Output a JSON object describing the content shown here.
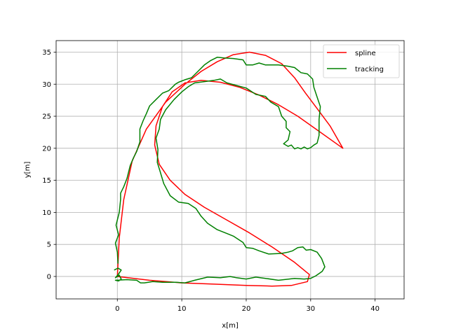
{
  "chart_data": {
    "type": "line",
    "xlabel": "x[m]",
    "ylabel": "y[m]",
    "xlim": [
      -9.5,
      44.5
    ],
    "ylim": [
      -3.5,
      36.8
    ],
    "xticks": [
      0,
      10,
      20,
      30,
      40
    ],
    "yticks": [
      0,
      5,
      10,
      15,
      20,
      25,
      30,
      35
    ],
    "grid": true,
    "legend_position": "top-right",
    "series": [
      {
        "name": "spline",
        "color": "#ff0000",
        "points": [
          [
            0,
            0
          ],
          [
            0.3,
            6
          ],
          [
            1.0,
            12
          ],
          [
            2.3,
            18
          ],
          [
            4.5,
            23
          ],
          [
            7.5,
            27.2
          ],
          [
            10.5,
            30
          ],
          [
            13,
            32
          ],
          [
            15.5,
            33.5
          ],
          [
            18,
            34.6
          ],
          [
            20.5,
            35
          ],
          [
            23,
            34.5
          ],
          [
            25.5,
            33.2
          ],
          [
            27.5,
            31
          ],
          [
            29.2,
            28.6
          ],
          [
            31,
            26.2
          ],
          [
            33,
            23.5
          ],
          [
            35,
            20
          ],
          [
            31.5,
            22.5
          ],
          [
            28,
            25
          ],
          [
            25,
            26.8
          ],
          [
            22,
            28.3
          ],
          [
            19,
            29.5
          ],
          [
            16,
            30.3
          ],
          [
            13,
            30.6
          ],
          [
            10.5,
            30.2
          ],
          [
            8.5,
            28.8
          ],
          [
            7,
            26.5
          ],
          [
            6,
            23.5
          ],
          [
            5.8,
            20.5
          ],
          [
            6.5,
            17.5
          ],
          [
            8.2,
            15
          ],
          [
            10.5,
            12.8
          ],
          [
            13.5,
            10.8
          ],
          [
            17,
            8.8
          ],
          [
            20.5,
            6.8
          ],
          [
            24,
            4.6
          ],
          [
            27.5,
            2.2
          ],
          [
            29.8,
            0.3
          ],
          [
            29.5,
            -0.8
          ],
          [
            27,
            -1.4
          ],
          [
            24,
            -1.5
          ],
          [
            20,
            -1.4
          ],
          [
            15,
            -1.2
          ],
          [
            10,
            -1
          ],
          [
            5,
            -0.6
          ],
          [
            0,
            0
          ]
        ]
      },
      {
        "name": "tracking",
        "color": "#008000",
        "points": [
          [
            -0.5,
            1.0
          ],
          [
            0.1,
            1.3
          ],
          [
            0.6,
            1.0
          ],
          [
            0.2,
            0.4
          ],
          [
            -0.3,
            -0.2
          ],
          [
            0.3,
            0.2
          ],
          [
            0.6,
            -0.4
          ],
          [
            0.2,
            -0.7
          ],
          [
            -0.3,
            -0.6
          ],
          [
            1.5,
            -0.5
          ],
          [
            3.0,
            -0.6
          ],
          [
            3.6,
            -1.0
          ],
          [
            4.2,
            -1.0
          ],
          [
            5.5,
            -0.8
          ],
          [
            7.0,
            -0.9
          ],
          [
            9.0,
            -0.9
          ],
          [
            10.5,
            -1.0
          ],
          [
            12.0,
            -0.6
          ],
          [
            14.0,
            -0.1
          ],
          [
            16.0,
            -0.2
          ],
          [
            17.5,
            0.0
          ],
          [
            18.5,
            -0.2
          ],
          [
            20.0,
            -0.4
          ],
          [
            21.5,
            -0.1
          ],
          [
            23.0,
            -0.3
          ],
          [
            25.0,
            -0.6
          ],
          [
            27.5,
            -0.3
          ],
          [
            29.0,
            -0.4
          ],
          [
            30.0,
            -0.3
          ],
          [
            30.8,
            0.1
          ],
          [
            31.8,
            0.8
          ],
          [
            32.2,
            1.5
          ],
          [
            31.7,
            2.8
          ],
          [
            31.0,
            3.8
          ],
          [
            30.0,
            4.2
          ],
          [
            29.3,
            4.1
          ],
          [
            28.8,
            4.6
          ],
          [
            28.0,
            4.5
          ],
          [
            27.2,
            4.0
          ],
          [
            26.5,
            3.8
          ],
          [
            25.5,
            3.6
          ],
          [
            23.5,
            3.5
          ],
          [
            22.0,
            4.0
          ],
          [
            21.0,
            4.4
          ],
          [
            20.0,
            4.5
          ],
          [
            19.5,
            5.3
          ],
          [
            18.0,
            6.3
          ],
          [
            17.0,
            6.7
          ],
          [
            15.5,
            7.3
          ],
          [
            14.0,
            8.3
          ],
          [
            13.0,
            9.4
          ],
          [
            12.2,
            10.6
          ],
          [
            11.0,
            11.4
          ],
          [
            9.5,
            11.6
          ],
          [
            8.2,
            12.6
          ],
          [
            7.2,
            14.5
          ],
          [
            6.6,
            16.5
          ],
          [
            6.2,
            17.8
          ],
          [
            6.3,
            19.8
          ],
          [
            6.0,
            21.6
          ],
          [
            6.5,
            23.0
          ],
          [
            6.7,
            24.5
          ],
          [
            7.5,
            26.0
          ],
          [
            8.8,
            27.6
          ],
          [
            10.0,
            28.8
          ],
          [
            11.0,
            29.6
          ],
          [
            12.0,
            30.2
          ],
          [
            13.5,
            30.4
          ],
          [
            15.0,
            30.6
          ],
          [
            16.0,
            30.8
          ],
          [
            17.0,
            30.2
          ],
          [
            18.5,
            29.8
          ],
          [
            20.0,
            29.4
          ],
          [
            21.5,
            28.4
          ],
          [
            23.0,
            28.1
          ],
          [
            23.8,
            27.2
          ],
          [
            25.0,
            26.5
          ],
          [
            25.5,
            25.0
          ],
          [
            26.2,
            24.2
          ],
          [
            26.2,
            23.2
          ],
          [
            26.8,
            22.6
          ],
          [
            26.5,
            21.3
          ],
          [
            25.8,
            20.7
          ],
          [
            26.5,
            20.3
          ],
          [
            27.0,
            20.5
          ],
          [
            27.5,
            19.9
          ],
          [
            28.0,
            20.1
          ],
          [
            28.5,
            19.9
          ],
          [
            29.0,
            20.2
          ],
          [
            29.5,
            19.9
          ],
          [
            30.0,
            20.1
          ],
          [
            30.5,
            20.5
          ],
          [
            31.0,
            20.8
          ],
          [
            31.3,
            22.0
          ],
          [
            31.3,
            24.5
          ],
          [
            31.5,
            26.5
          ],
          [
            31.0,
            28.0
          ],
          [
            30.5,
            29.5
          ],
          [
            30.3,
            30.8
          ],
          [
            29.5,
            31.6
          ],
          [
            28.5,
            31.8
          ],
          [
            27.5,
            32.6
          ],
          [
            26.5,
            32.8
          ],
          [
            25.0,
            33.0
          ],
          [
            23.0,
            33.0
          ],
          [
            22.0,
            33.3
          ],
          [
            21.0,
            33.0
          ],
          [
            20.0,
            33.0
          ],
          [
            19.5,
            33.8
          ],
          [
            18.0,
            34.0
          ],
          [
            16.5,
            34.1
          ],
          [
            15.5,
            34.2
          ],
          [
            14.5,
            33.7
          ],
          [
            13.5,
            33.0
          ],
          [
            12.5,
            32.0
          ],
          [
            11.5,
            31.0
          ],
          [
            10.5,
            30.7
          ],
          [
            9.5,
            30.3
          ],
          [
            9.0,
            30.0
          ],
          [
            8.0,
            29.0
          ],
          [
            7.0,
            28.6
          ],
          [
            6.0,
            27.6
          ],
          [
            5.0,
            26.6
          ],
          [
            4.5,
            25.4
          ],
          [
            4.0,
            24.3
          ],
          [
            3.5,
            23.0
          ],
          [
            3.5,
            21.0
          ],
          [
            3.0,
            19.5
          ],
          [
            2.5,
            18.5
          ],
          [
            2.0,
            17.3
          ],
          [
            1.5,
            15.3
          ],
          [
            1.0,
            14.0
          ],
          [
            0.5,
            13.0
          ],
          [
            0.5,
            12.0
          ],
          [
            0.3,
            10.0
          ],
          [
            -0.2,
            8.0
          ],
          [
            0.2,
            6.5
          ],
          [
            -0.3,
            5.2
          ],
          [
            0.0,
            3.8
          ],
          [
            0.1,
            2.0
          ]
        ]
      }
    ]
  }
}
